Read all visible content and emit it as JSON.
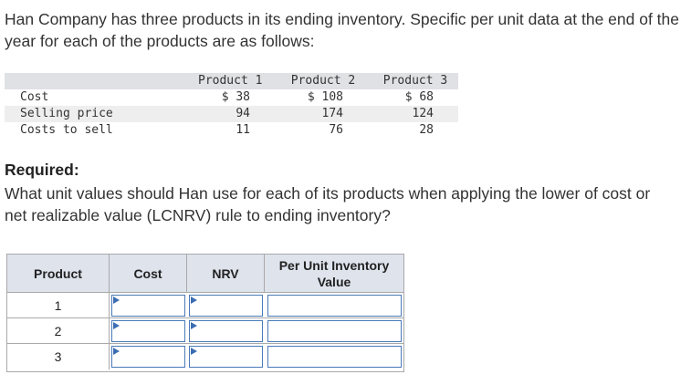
{
  "intro": "Han Company has three products in its ending inventory. Specific per unit data at the end of the year for each of the products are as follows:",
  "data_table": {
    "headers": [
      "Product 1",
      "Product 2",
      "Product 3"
    ],
    "rows": [
      {
        "label": "Cost",
        "values": [
          "$ 38",
          "$ 108",
          "$ 68"
        ]
      },
      {
        "label": "Selling price",
        "values": [
          "94",
          "174",
          "124"
        ]
      },
      {
        "label": "Costs to sell",
        "values": [
          "11",
          "76",
          "28"
        ]
      }
    ]
  },
  "required": {
    "title": "Required:",
    "text": "What unit values should Han use for each of its products when applying the lower of cost or net realizable value (LCNRV) rule to ending inventory?"
  },
  "answer_table": {
    "headers": [
      "Product",
      "Cost",
      "NRV",
      "Per Unit Inventory Value"
    ],
    "rows": [
      {
        "product": "1",
        "cost": "",
        "nrv": "",
        "per_unit": ""
      },
      {
        "product": "2",
        "cost": "",
        "nrv": "",
        "per_unit": ""
      },
      {
        "product": "3",
        "cost": "",
        "nrv": "",
        "per_unit": ""
      }
    ]
  },
  "colors": {
    "header_band": "#dfe1e4",
    "answer_header": "#dee3ec",
    "input_border": "#4a7ab8"
  }
}
